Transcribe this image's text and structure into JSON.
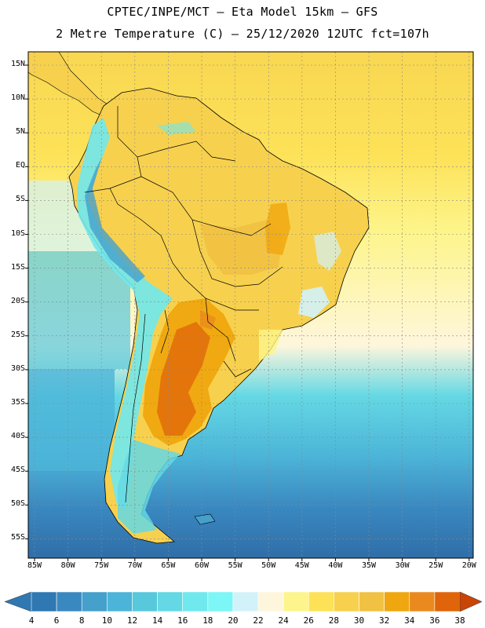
{
  "header": {
    "line1": "CPTEC/INPE/MCT –  Eta Model 15km – GFS",
    "line2": "2 Metre Temperature (C) – 25/12/2020 12UTC fct=107h"
  },
  "map": {
    "lat_labels": [
      "15N",
      "10N",
      "5N",
      "EQ",
      "5S",
      "10S",
      "15S",
      "20S",
      "25S",
      "30S",
      "35S",
      "40S",
      "45S",
      "50S",
      "55S"
    ],
    "lon_labels": [
      "85W",
      "80W",
      "75W",
      "70W",
      "65W",
      "60W",
      "55W",
      "50W",
      "45W",
      "40W",
      "35W",
      "30W",
      "25W",
      "20W"
    ],
    "lat_range": [
      15,
      -55
    ],
    "lon_range": [
      -85,
      -20
    ],
    "grid": true
  },
  "colorbar": {
    "labels": [
      "4",
      "6",
      "8",
      "10",
      "12",
      "14",
      "16",
      "18",
      "20",
      "22",
      "24",
      "26",
      "28",
      "30",
      "32",
      "34",
      "36",
      "38"
    ],
    "colors": [
      "#2f78b2",
      "#3a88c0",
      "#45a0cc",
      "#4cb4d8",
      "#58c8dc",
      "#64d8e4",
      "#6fe8ee",
      "#7cf6f6",
      "#d2f2fa",
      "#fef6dc",
      "#fdf58c",
      "#fde258",
      "#f7d14e",
      "#f1c143",
      "#f0a60e",
      "#ea8a1e",
      "#df640a",
      "#c84506"
    ]
  }
}
